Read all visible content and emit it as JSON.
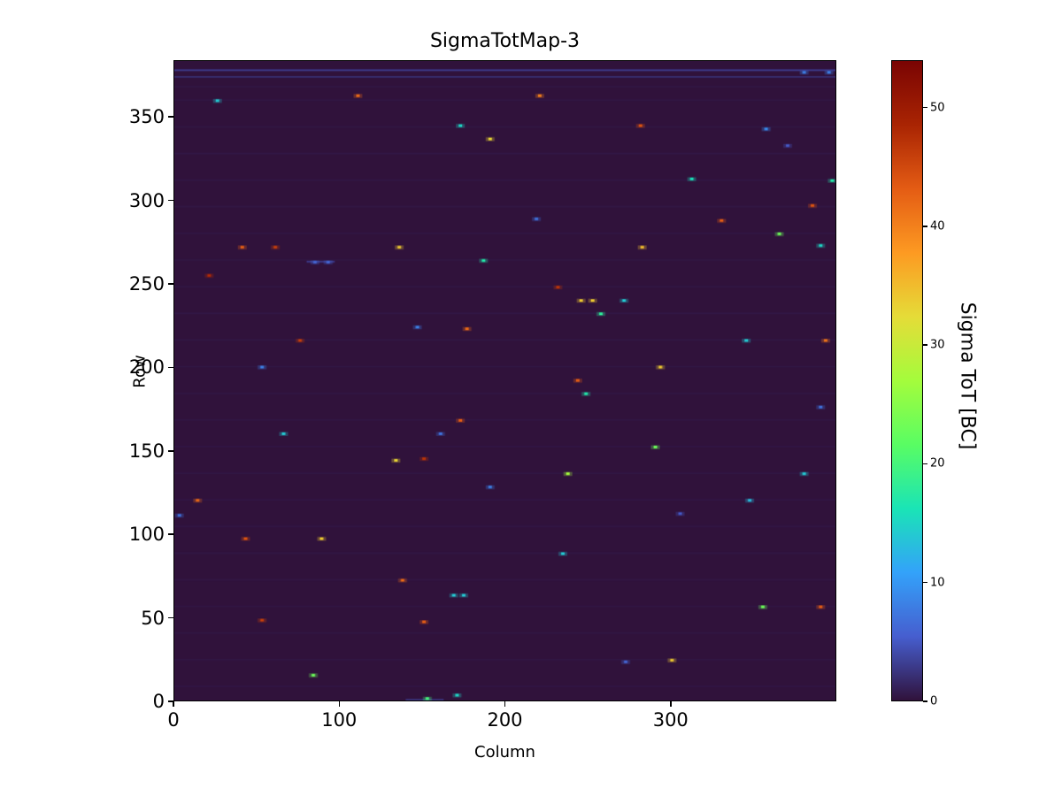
{
  "chart_data": {
    "type": "heatmap",
    "title": "SigmaTotMap-3",
    "xlabel": "Column",
    "ylabel": "Row",
    "xlim": [
      0,
      400
    ],
    "ylim": [
      0,
      384
    ],
    "xticks": [
      0,
      100,
      200,
      300
    ],
    "yticks": [
      0,
      50,
      100,
      150,
      200,
      250,
      300,
      350
    ],
    "vmin": 0,
    "vmax": 54,
    "background_value": 0,
    "grid": false,
    "colorbar": {
      "label": "Sigma ToT [BC]",
      "ticks": [
        0,
        10,
        20,
        30,
        40,
        50
      ],
      "position": "right"
    },
    "colormap_name": "turbo",
    "colormap_stops": [
      "#30123b",
      "#465ecf",
      "#33a2fa",
      "#1ae4b6",
      "#59fd63",
      "#a4fc3c",
      "#e5dc38",
      "#fd9a22",
      "#e45c14",
      "#a92403",
      "#7a0403"
    ],
    "points": [
      {
        "c": 25,
        "r": 360,
        "v": 14
      },
      {
        "c": 110,
        "r": 363,
        "v": 42
      },
      {
        "c": 220,
        "r": 363,
        "v": 40
      },
      {
        "c": 172,
        "r": 345,
        "v": 15
      },
      {
        "c": 281,
        "r": 345,
        "v": 44
      },
      {
        "c": 190,
        "r": 337,
        "v": 33
      },
      {
        "c": 357,
        "r": 343,
        "v": 9
      },
      {
        "c": 370,
        "r": 333,
        "v": 5
      },
      {
        "c": 312,
        "r": 313,
        "v": 16
      },
      {
        "c": 397,
        "r": 312,
        "v": 17
      },
      {
        "c": 385,
        "r": 297,
        "v": 44
      },
      {
        "c": 330,
        "r": 288,
        "v": 43
      },
      {
        "c": 218,
        "r": 289,
        "v": 7
      },
      {
        "c": 40,
        "r": 272,
        "v": 43
      },
      {
        "c": 60,
        "r": 272,
        "v": 46
      },
      {
        "c": 135,
        "r": 272,
        "v": 34
      },
      {
        "c": 282,
        "r": 272,
        "v": 35
      },
      {
        "c": 390,
        "r": 273,
        "v": 15
      },
      {
        "c": 365,
        "r": 280,
        "v": 23
      },
      {
        "c": 186,
        "r": 264,
        "v": 17
      },
      {
        "c": 84,
        "r": 263,
        "v": 6
      },
      {
        "c": 92,
        "r": 263,
        "v": 6
      },
      {
        "c": 20,
        "r": 255,
        "v": 48
      },
      {
        "c": 231,
        "r": 248,
        "v": 47
      },
      {
        "c": 245,
        "r": 240,
        "v": 34
      },
      {
        "c": 252,
        "r": 240,
        "v": 34
      },
      {
        "c": 271,
        "r": 240,
        "v": 14
      },
      {
        "c": 257,
        "r": 232,
        "v": 18
      },
      {
        "c": 146,
        "r": 224,
        "v": 8
      },
      {
        "c": 176,
        "r": 223,
        "v": 42
      },
      {
        "c": 75,
        "r": 216,
        "v": 46
      },
      {
        "c": 345,
        "r": 216,
        "v": 14
      },
      {
        "c": 393,
        "r": 216,
        "v": 41
      },
      {
        "c": 52,
        "r": 200,
        "v": 8
      },
      {
        "c": 293,
        "r": 200,
        "v": 34
      },
      {
        "c": 243,
        "r": 192,
        "v": 43
      },
      {
        "c": 248,
        "r": 184,
        "v": 17
      },
      {
        "c": 390,
        "r": 176,
        "v": 7
      },
      {
        "c": 172,
        "r": 168,
        "v": 43
      },
      {
        "c": 65,
        "r": 160,
        "v": 14
      },
      {
        "c": 160,
        "r": 160,
        "v": 7
      },
      {
        "c": 290,
        "r": 152,
        "v": 23
      },
      {
        "c": 133,
        "r": 144,
        "v": 33
      },
      {
        "c": 150,
        "r": 145,
        "v": 47
      },
      {
        "c": 237,
        "r": 136,
        "v": 27
      },
      {
        "c": 380,
        "r": 136,
        "v": 14
      },
      {
        "c": 190,
        "r": 128,
        "v": 8
      },
      {
        "c": 13,
        "r": 120,
        "v": 42
      },
      {
        "c": 347,
        "r": 120,
        "v": 13
      },
      {
        "c": 305,
        "r": 112,
        "v": 5
      },
      {
        "c": 2,
        "r": 111,
        "v": 7
      },
      {
        "c": 42,
        "r": 97,
        "v": 44
      },
      {
        "c": 88,
        "r": 97,
        "v": 34
      },
      {
        "c": 234,
        "r": 88,
        "v": 14
      },
      {
        "c": 137,
        "r": 72,
        "v": 42
      },
      {
        "c": 168,
        "r": 63,
        "v": 14
      },
      {
        "c": 174,
        "r": 63,
        "v": 14
      },
      {
        "c": 52,
        "r": 48,
        "v": 46
      },
      {
        "c": 150,
        "r": 47,
        "v": 43
      },
      {
        "c": 83,
        "r": 15,
        "v": 23
      },
      {
        "c": 300,
        "r": 24,
        "v": 34
      },
      {
        "c": 272,
        "r": 23,
        "v": 6
      },
      {
        "c": 170,
        "r": 3,
        "v": 15
      },
      {
        "c": 355,
        "r": 56,
        "v": 23
      },
      {
        "c": 390,
        "r": 56,
        "v": 43
      },
      {
        "c": 152,
        "r": 1,
        "v": 20
      },
      {
        "c": 380,
        "r": 377,
        "v": 8
      },
      {
        "c": 395,
        "r": 377,
        "v": 8
      }
    ],
    "streaks": [
      {
        "row": 378,
        "col_start": 0,
        "col_end": 399,
        "value": 4
      },
      {
        "row": 374,
        "col_start": 0,
        "col_end": 399,
        "value": 2.5
      },
      {
        "row": 263,
        "col_start": 80,
        "col_end": 96,
        "value": 4
      },
      {
        "row": 0,
        "col_start": 140,
        "col_end": 162,
        "value": 3
      },
      {
        "row": 8,
        "col_start": 0,
        "col_end": 399,
        "value": 1.2
      },
      {
        "row": 24,
        "col_start": 0,
        "col_end": 399,
        "value": 1.2
      },
      {
        "row": 40,
        "col_start": 0,
        "col_end": 399,
        "value": 1.2
      },
      {
        "row": 56,
        "col_start": 0,
        "col_end": 399,
        "value": 1.2
      },
      {
        "row": 72,
        "col_start": 0,
        "col_end": 399,
        "value": 1.2
      },
      {
        "row": 88,
        "col_start": 0,
        "col_end": 399,
        "value": 1.2
      },
      {
        "row": 104,
        "col_start": 0,
        "col_end": 399,
        "value": 1.2
      },
      {
        "row": 120,
        "col_start": 0,
        "col_end": 399,
        "value": 1.2
      },
      {
        "row": 136,
        "col_start": 0,
        "col_end": 399,
        "value": 1.2
      },
      {
        "row": 152,
        "col_start": 0,
        "col_end": 399,
        "value": 1.2
      },
      {
        "row": 168,
        "col_start": 0,
        "col_end": 399,
        "value": 1.2
      },
      {
        "row": 184,
        "col_start": 0,
        "col_end": 399,
        "value": 1.2
      },
      {
        "row": 200,
        "col_start": 0,
        "col_end": 399,
        "value": 1.2
      },
      {
        "row": 216,
        "col_start": 0,
        "col_end": 399,
        "value": 1.2
      },
      {
        "row": 232,
        "col_start": 0,
        "col_end": 399,
        "value": 1.2
      },
      {
        "row": 248,
        "col_start": 0,
        "col_end": 399,
        "value": 1.2
      },
      {
        "row": 264,
        "col_start": 0,
        "col_end": 399,
        "value": 1.2
      },
      {
        "row": 280,
        "col_start": 0,
        "col_end": 399,
        "value": 1.2
      },
      {
        "row": 296,
        "col_start": 0,
        "col_end": 399,
        "value": 1.2
      },
      {
        "row": 312,
        "col_start": 0,
        "col_end": 399,
        "value": 1.2
      },
      {
        "row": 328,
        "col_start": 0,
        "col_end": 399,
        "value": 1.2
      },
      {
        "row": 344,
        "col_start": 0,
        "col_end": 399,
        "value": 1.2
      },
      {
        "row": 360,
        "col_start": 0,
        "col_end": 399,
        "value": 1.2
      },
      {
        "row": 368,
        "col_start": 0,
        "col_end": 399,
        "value": 1.2
      }
    ]
  }
}
